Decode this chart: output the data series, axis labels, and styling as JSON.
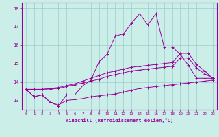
{
  "xlabel": "Windchill (Refroidissement éolien,°C)",
  "background_color": "#cceee8",
  "grid_color": "#99cccc",
  "line_color": "#990099",
  "xlim": [
    -0.5,
    23.5
  ],
  "ylim": [
    12.5,
    18.3
  ],
  "xticks": [
    0,
    1,
    2,
    3,
    4,
    5,
    6,
    7,
    8,
    9,
    10,
    11,
    12,
    13,
    14,
    15,
    16,
    17,
    18,
    19,
    20,
    21,
    22,
    23
  ],
  "yticks": [
    13,
    14,
    15,
    16,
    17,
    18
  ],
  "series": [
    {
      "x": [
        0,
        1,
        2,
        3,
        4,
        5,
        6,
        7,
        8,
        9,
        10,
        11,
        12,
        13,
        14,
        15,
        16,
        17,
        18,
        19,
        20,
        21,
        22,
        23
      ],
      "y": [
        13.6,
        13.2,
        13.3,
        12.9,
        12.7,
        13.3,
        13.3,
        13.8,
        14.1,
        15.1,
        15.5,
        16.5,
        16.6,
        17.2,
        17.7,
        17.1,
        17.7,
        15.9,
        15.9,
        15.5,
        14.9,
        14.2,
        14.2,
        14.2
      ]
    },
    {
      "x": [
        0,
        1,
        2,
        3,
        4,
        5,
        6,
        7,
        8,
        9,
        10,
        11,
        12,
        13,
        14,
        15,
        16,
        17,
        18,
        19,
        20,
        21,
        22,
        23
      ],
      "y": [
        13.6,
        13.6,
        13.6,
        13.65,
        13.7,
        13.8,
        13.9,
        14.05,
        14.2,
        14.35,
        14.5,
        14.6,
        14.7,
        14.8,
        14.85,
        14.9,
        14.95,
        15.0,
        15.05,
        15.55,
        15.55,
        14.95,
        14.6,
        14.2
      ]
    },
    {
      "x": [
        0,
        1,
        2,
        3,
        4,
        5,
        6,
        7,
        8,
        9,
        10,
        11,
        12,
        13,
        14,
        15,
        16,
        17,
        18,
        19,
        20,
        21,
        22,
        23
      ],
      "y": [
        13.6,
        13.6,
        13.6,
        13.62,
        13.65,
        13.75,
        13.85,
        13.95,
        14.05,
        14.15,
        14.3,
        14.4,
        14.5,
        14.6,
        14.65,
        14.7,
        14.75,
        14.8,
        14.85,
        15.3,
        15.3,
        14.75,
        14.45,
        14.2
      ]
    },
    {
      "x": [
        0,
        1,
        2,
        3,
        4,
        5,
        6,
        7,
        8,
        9,
        10,
        11,
        12,
        13,
        14,
        15,
        16,
        17,
        18,
        19,
        20,
        21,
        22,
        23
      ],
      "y": [
        13.6,
        13.2,
        13.3,
        12.9,
        12.75,
        13.0,
        13.05,
        13.1,
        13.2,
        13.25,
        13.3,
        13.35,
        13.45,
        13.55,
        13.65,
        13.7,
        13.75,
        13.8,
        13.85,
        13.9,
        13.95,
        14.0,
        14.05,
        14.1
      ]
    }
  ]
}
